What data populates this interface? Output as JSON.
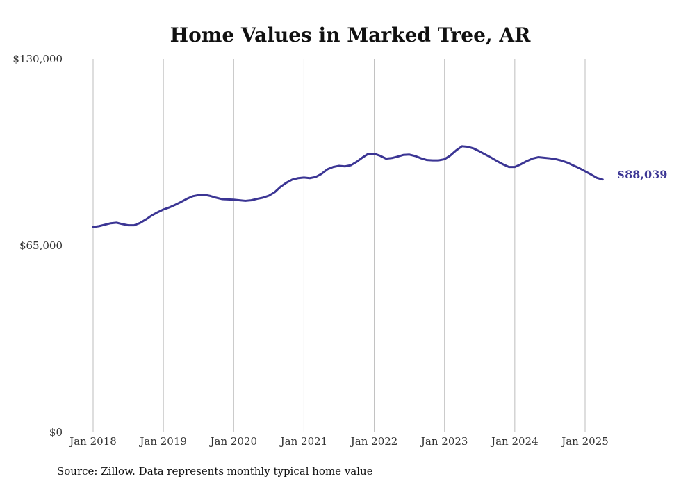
{
  "chart_data": {
    "type": "line",
    "title": "Home Values in Marked Tree, AR",
    "source": "Source: Zillow. Data represents monthly typical home value",
    "ylim": [
      0,
      130000
    ],
    "yticks": [
      {
        "value": 0,
        "label": "$0"
      },
      {
        "value": 65000,
        "label": "$65,000"
      },
      {
        "value": 130000,
        "label": "$130,000"
      }
    ],
    "xticks": [
      {
        "value": "2018-01",
        "label": "Jan 2018"
      },
      {
        "value": "2019-01",
        "label": "Jan 2019"
      },
      {
        "value": "2020-01",
        "label": "Jan 2020"
      },
      {
        "value": "2021-01",
        "label": "Jan 2021"
      },
      {
        "value": "2022-01",
        "label": "Jan 2022"
      },
      {
        "value": "2023-01",
        "label": "Jan 2023"
      },
      {
        "value": "2024-01",
        "label": "Jan 2024"
      },
      {
        "value": "2025-01",
        "label": "Jan 2025"
      }
    ],
    "grid": "vertical",
    "line_color": "#3b3594",
    "end_label": "$88,039",
    "series": [
      {
        "x": [
          "2018-01",
          "2018-02",
          "2018-03",
          "2018-04",
          "2018-05",
          "2018-06",
          "2018-07",
          "2018-08",
          "2018-09",
          "2018-10",
          "2018-11",
          "2018-12",
          "2019-01",
          "2019-02",
          "2019-03",
          "2019-04",
          "2019-05",
          "2019-06",
          "2019-07",
          "2019-08",
          "2019-09",
          "2019-10",
          "2019-11",
          "2019-12",
          "2020-01",
          "2020-02",
          "2020-03",
          "2020-04",
          "2020-05",
          "2020-06",
          "2020-07",
          "2020-08",
          "2020-09",
          "2020-10",
          "2020-11",
          "2020-12",
          "2021-01",
          "2021-02",
          "2021-03",
          "2021-04",
          "2021-05",
          "2021-06",
          "2021-07",
          "2021-08",
          "2021-09",
          "2021-10",
          "2021-11",
          "2021-12",
          "2022-01",
          "2022-02",
          "2022-03",
          "2022-04",
          "2022-05",
          "2022-06",
          "2022-07",
          "2022-08",
          "2022-09",
          "2022-10",
          "2022-11",
          "2022-12",
          "2023-01",
          "2023-02",
          "2023-03",
          "2023-04",
          "2023-05",
          "2023-06",
          "2023-07",
          "2023-08",
          "2023-09",
          "2023-10",
          "2023-11",
          "2023-12",
          "2024-01",
          "2024-02",
          "2024-03",
          "2024-04",
          "2024-05",
          "2024-06",
          "2024-07",
          "2024-08",
          "2024-09",
          "2024-10",
          "2024-11",
          "2024-12",
          "2025-01",
          "2025-02",
          "2025-03",
          "2025-04"
        ],
        "values": [
          71500,
          71800,
          72300,
          72800,
          73000,
          72500,
          72100,
          72100,
          72900,
          74100,
          75500,
          76600,
          77600,
          78300,
          79200,
          80200,
          81300,
          82200,
          82600,
          82700,
          82300,
          81700,
          81200,
          81100,
          81000,
          80800,
          80600,
          80800,
          81300,
          81700,
          82400,
          83600,
          85500,
          86900,
          88000,
          88500,
          88700,
          88500,
          88900,
          90000,
          91600,
          92400,
          92800,
          92600,
          93000,
          94200,
          95700,
          97000,
          97000,
          96300,
          95300,
          95500,
          96000,
          96600,
          96700,
          96200,
          95400,
          94800,
          94700,
          94700,
          95100,
          96400,
          98200,
          99600,
          99400,
          98800,
          97800,
          96700,
          95600,
          94400,
          93300,
          92400,
          92400,
          93300,
          94400,
          95300,
          95800,
          95600,
          95400,
          95100,
          94600,
          93900,
          92900,
          92000,
          90900,
          89800,
          88600,
          88039
        ]
      }
    ]
  }
}
